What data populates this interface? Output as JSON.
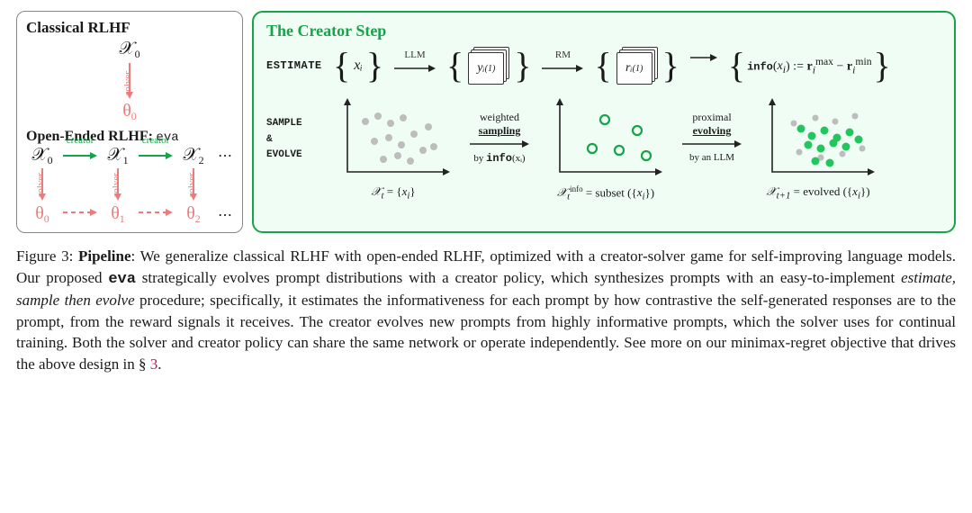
{
  "left_panel": {
    "title_classical": "Classical RLHF",
    "title_open": "Open-Ended RLHF:",
    "title_open_suffix": "eva",
    "chi0": "𝒳",
    "chi0_sub": "0",
    "chi1_sub": "1",
    "chi2_sub": "2",
    "theta0": "θ",
    "theta0_sub": "0",
    "theta1_sub": "1",
    "theta2_sub": "2",
    "solver_label": "solver",
    "creator_label": "creator",
    "ellipsis": "⋯",
    "arrow_color_solver": "#ec7c7c",
    "arrow_color_creator": "#16a34a"
  },
  "right_panel": {
    "title": "The Creator Step",
    "estimate_label": "ESTIMATE",
    "sample_evolve_label1": "SAMPLE",
    "sample_evolve_label2": "&",
    "sample_evolve_label3": "EVOLVE",
    "set_x": "xᵢ",
    "llm_label": "LLM",
    "rm_label": "RM",
    "y_label": "yᵢ",
    "y_sup": "(1)",
    "r_label": "rᵢ",
    "r_sup": "(1)",
    "info_eq": "info(xᵢ) := rᵢᵐᵃˣ − rᵢᵐⁱⁿ",
    "info_prefix": "info",
    "step1": {
      "top": "weighted",
      "bold": "sampling",
      "sub_prefix": "by ",
      "sub_bold": "info",
      "sub_suffix": "(xᵢ)"
    },
    "step2": {
      "top": "proximal",
      "bold": "evolving",
      "sub": "by an LLM"
    },
    "chart_captions": {
      "c1": "𝒳ₜ = {xᵢ}",
      "c2": "𝒳ₜⁱⁿᶠᵒ = subset ({xᵢ})",
      "c3": "𝒳ₜ₊₁ = evolved ({xᵢ})"
    },
    "colors": {
      "grey_dot": "#bdbdbd",
      "green_ring": "#16a34a",
      "green_fill": "#22c55e",
      "axis": "#222222"
    },
    "chart1": {
      "points": [
        [
          20,
          28
        ],
        [
          34,
          22
        ],
        [
          48,
          30
        ],
        [
          62,
          24
        ],
        [
          30,
          50
        ],
        [
          46,
          46
        ],
        [
          60,
          54
        ],
        [
          74,
          42
        ],
        [
          40,
          70
        ],
        [
          56,
          66
        ],
        [
          70,
          72
        ],
        [
          84,
          60
        ],
        [
          90,
          34
        ],
        [
          96,
          56
        ]
      ]
    },
    "chart2": {
      "points": [
        [
          50,
          26
        ],
        [
          86,
          38
        ],
        [
          36,
          58
        ],
        [
          66,
          60
        ],
        [
          96,
          66
        ]
      ]
    },
    "chart3": {
      "grey": [
        [
          24,
          30
        ],
        [
          48,
          24
        ],
        [
          70,
          28
        ],
        [
          92,
          22
        ],
        [
          30,
          62
        ],
        [
          54,
          68
        ],
        [
          78,
          64
        ],
        [
          100,
          58
        ]
      ],
      "green": [
        [
          32,
          36
        ],
        [
          44,
          44
        ],
        [
          58,
          38
        ],
        [
          72,
          46
        ],
        [
          86,
          40
        ],
        [
          40,
          54
        ],
        [
          54,
          58
        ],
        [
          68,
          52
        ],
        [
          82,
          56
        ],
        [
          96,
          48
        ],
        [
          48,
          72
        ],
        [
          64,
          74
        ]
      ]
    }
  },
  "caption": {
    "prefix": "Figure 3: ",
    "bold": "Pipeline",
    "body1": ": We generalize classical RLHF with open-ended RLHF, optimized with a creator-solver game for self-improving language models. Our proposed ",
    "eva": "eva",
    "body2": " strategically evolves prompt distributions with a creator policy, which synthesizes prompts with an easy-to-implement ",
    "ital": "estimate, sample then evolve",
    "body3": " procedure; specifically, it estimates the informativeness for each prompt by how contrastive the self-generated responses are to the prompt, from the reward signals it receives. The creator evolves new prompts from highly informative prompts, which the solver uses for continual training. Both the solver and creator policy can share the same network or operate independently. See more on our minimax-regret objective that drives the above design in § ",
    "seclink": "3",
    "body4": "."
  }
}
